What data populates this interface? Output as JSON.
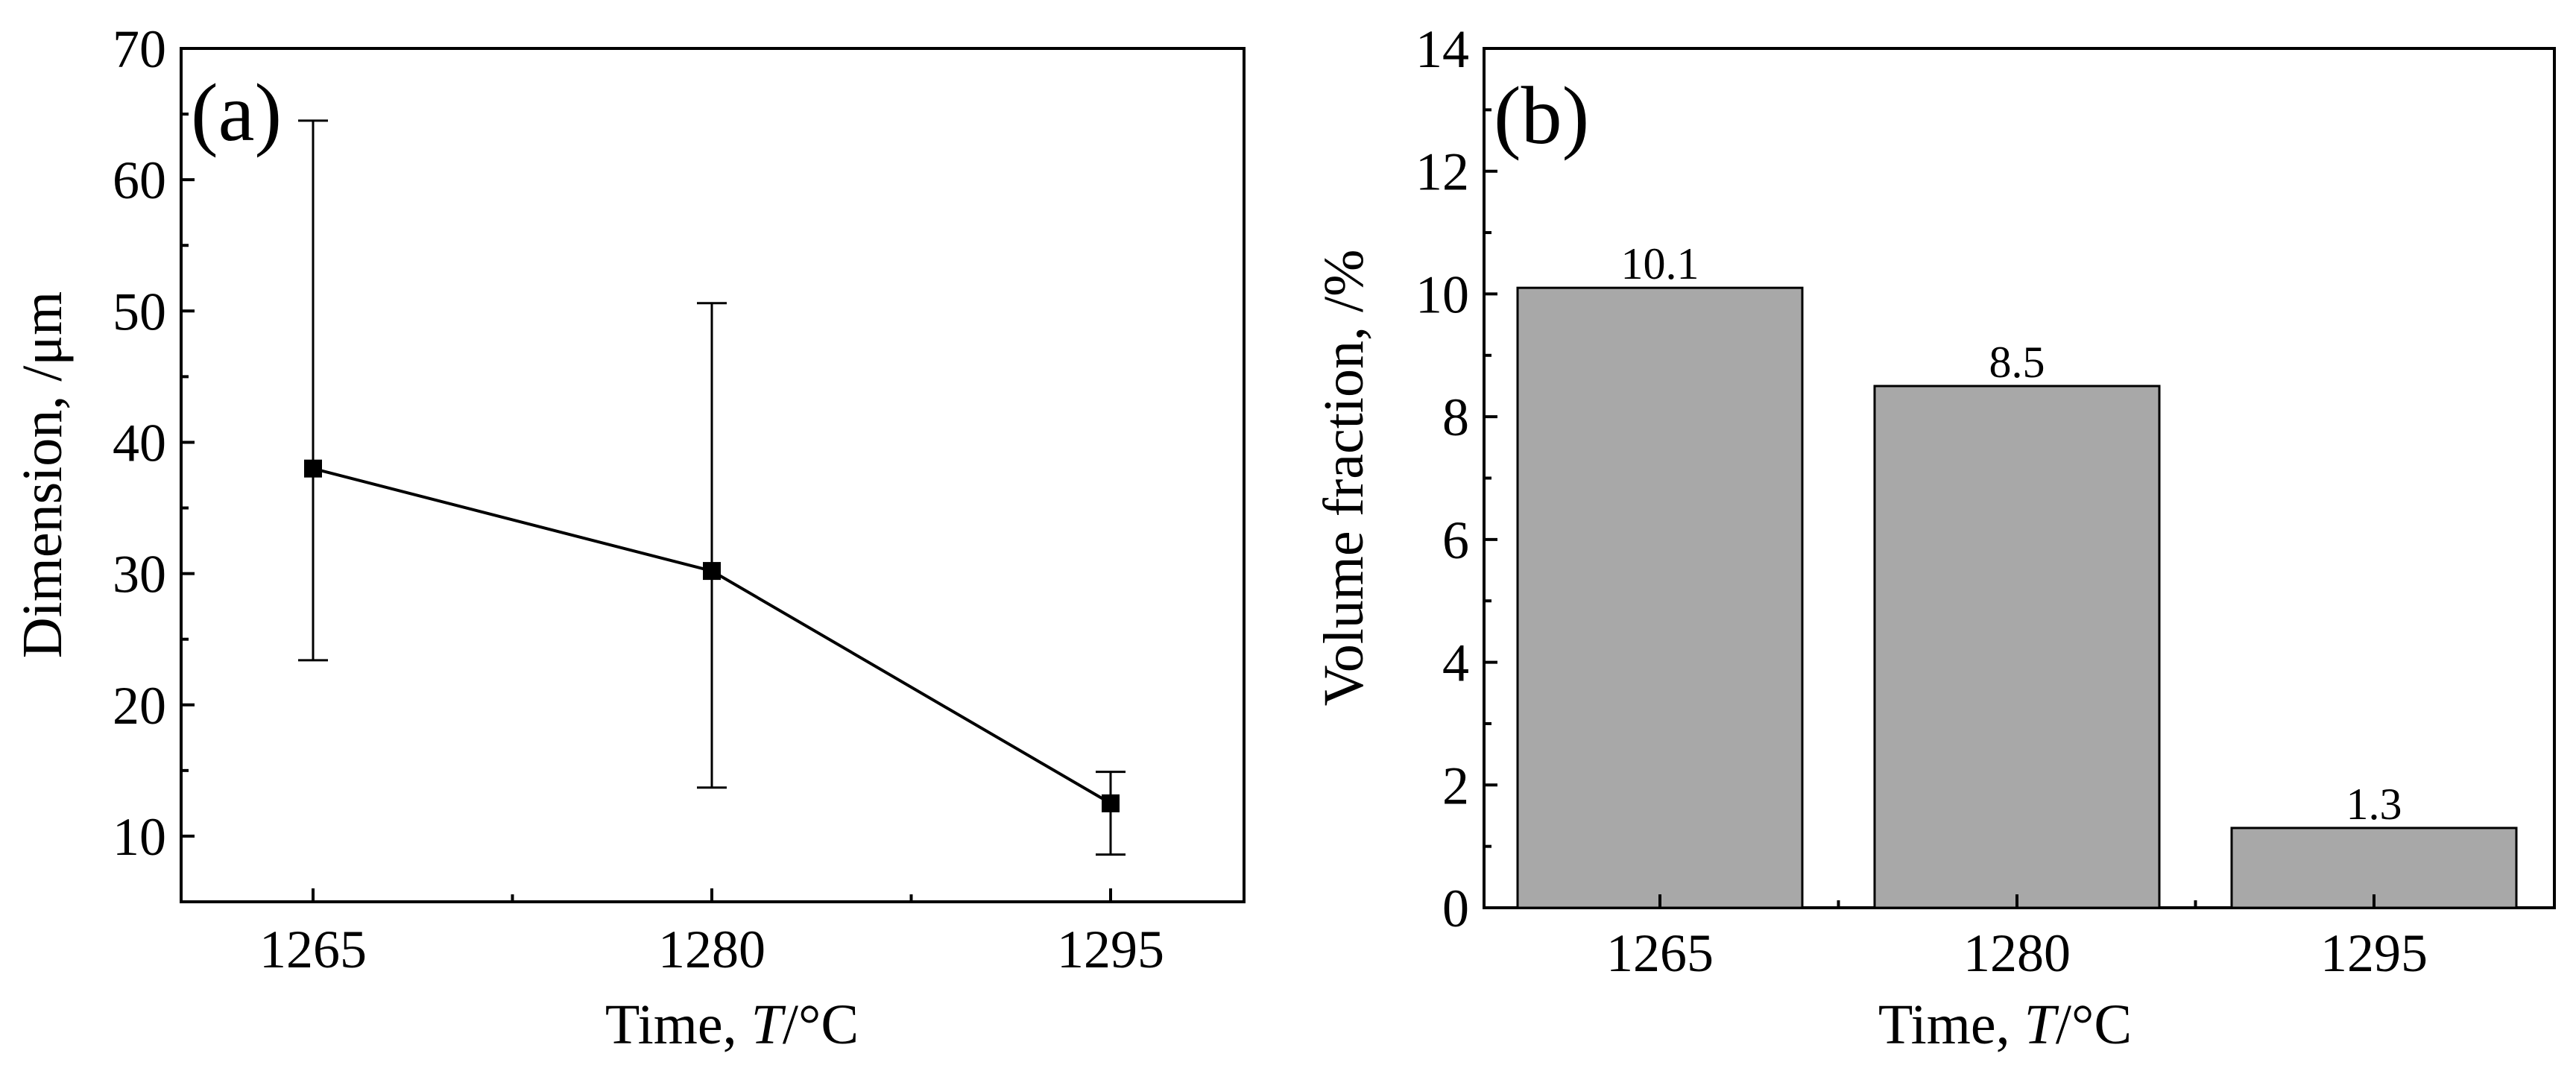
{
  "chart_data": [
    {
      "type": "line",
      "panel_label": "(a)",
      "categories": [
        "1265",
        "1280",
        "1295"
      ],
      "series": [
        {
          "name": "Dimension",
          "values": [
            38,
            30.2,
            12.5
          ],
          "error_upper": [
            64.5,
            50.6,
            14.9
          ],
          "error_lower": [
            23.4,
            13.7,
            8.6
          ]
        }
      ],
      "xlabel_prefix": "Time, ",
      "xlabel_italic": "T",
      "xlabel_suffix": "/°C",
      "ylabel": "Dimension, /μm",
      "ylim": [
        5,
        70
      ],
      "yticks": [
        10,
        20,
        30,
        40,
        50,
        60,
        70
      ],
      "marker": "square",
      "grid": false
    },
    {
      "type": "bar",
      "panel_label": "(b)",
      "categories": [
        "1265",
        "1280",
        "1295"
      ],
      "values": [
        10.1,
        8.5,
        1.3
      ],
      "data_labels": [
        "10.1",
        "8.5",
        "1.3"
      ],
      "xlabel_prefix": "Time, ",
      "xlabel_italic": "T",
      "xlabel_suffix": "/°C",
      "ylabel": "Volume fraction, /%",
      "ylim": [
        0,
        14
      ],
      "yticks": [
        0,
        2,
        4,
        6,
        8,
        10,
        12,
        14
      ],
      "bar_color": "#a8a8a8",
      "grid": false
    }
  ]
}
